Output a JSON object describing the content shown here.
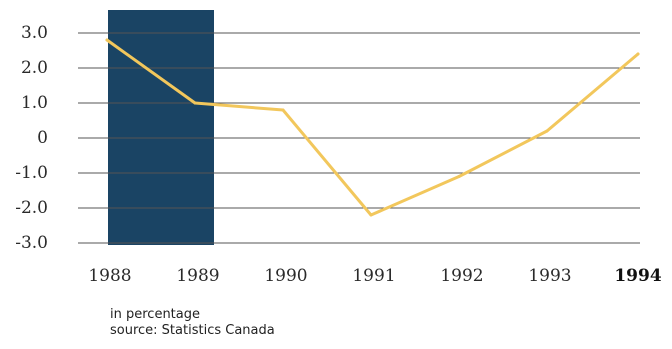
{
  "chart_data": {
    "type": "line",
    "categories": [
      "1988",
      "1989",
      "1990",
      "1991",
      "1992",
      "1993",
      "1994"
    ],
    "series": [
      {
        "values": [
          2.8,
          1.0,
          0.8,
          -2.2,
          -1.1,
          0.2,
          2.4
        ]
      }
    ],
    "y_ticks": [
      "3.0",
      "2.0",
      "1.0",
      "0",
      "-1.0",
      "-2.0",
      "-3.0"
    ],
    "y_tick_values": [
      3,
      2,
      1,
      0,
      -1,
      -2,
      -3
    ],
    "ylim": [
      -3.5,
      3.5
    ],
    "highlight_range": [
      "1988",
      "1989"
    ],
    "bold_category": "1994",
    "grid": true,
    "colors": {
      "line": "#f2c75c",
      "highlight": "#1a4464",
      "grid": "#555555"
    }
  },
  "footnotes": {
    "unit": "in percentage",
    "source": "source: Statistics Canada"
  }
}
